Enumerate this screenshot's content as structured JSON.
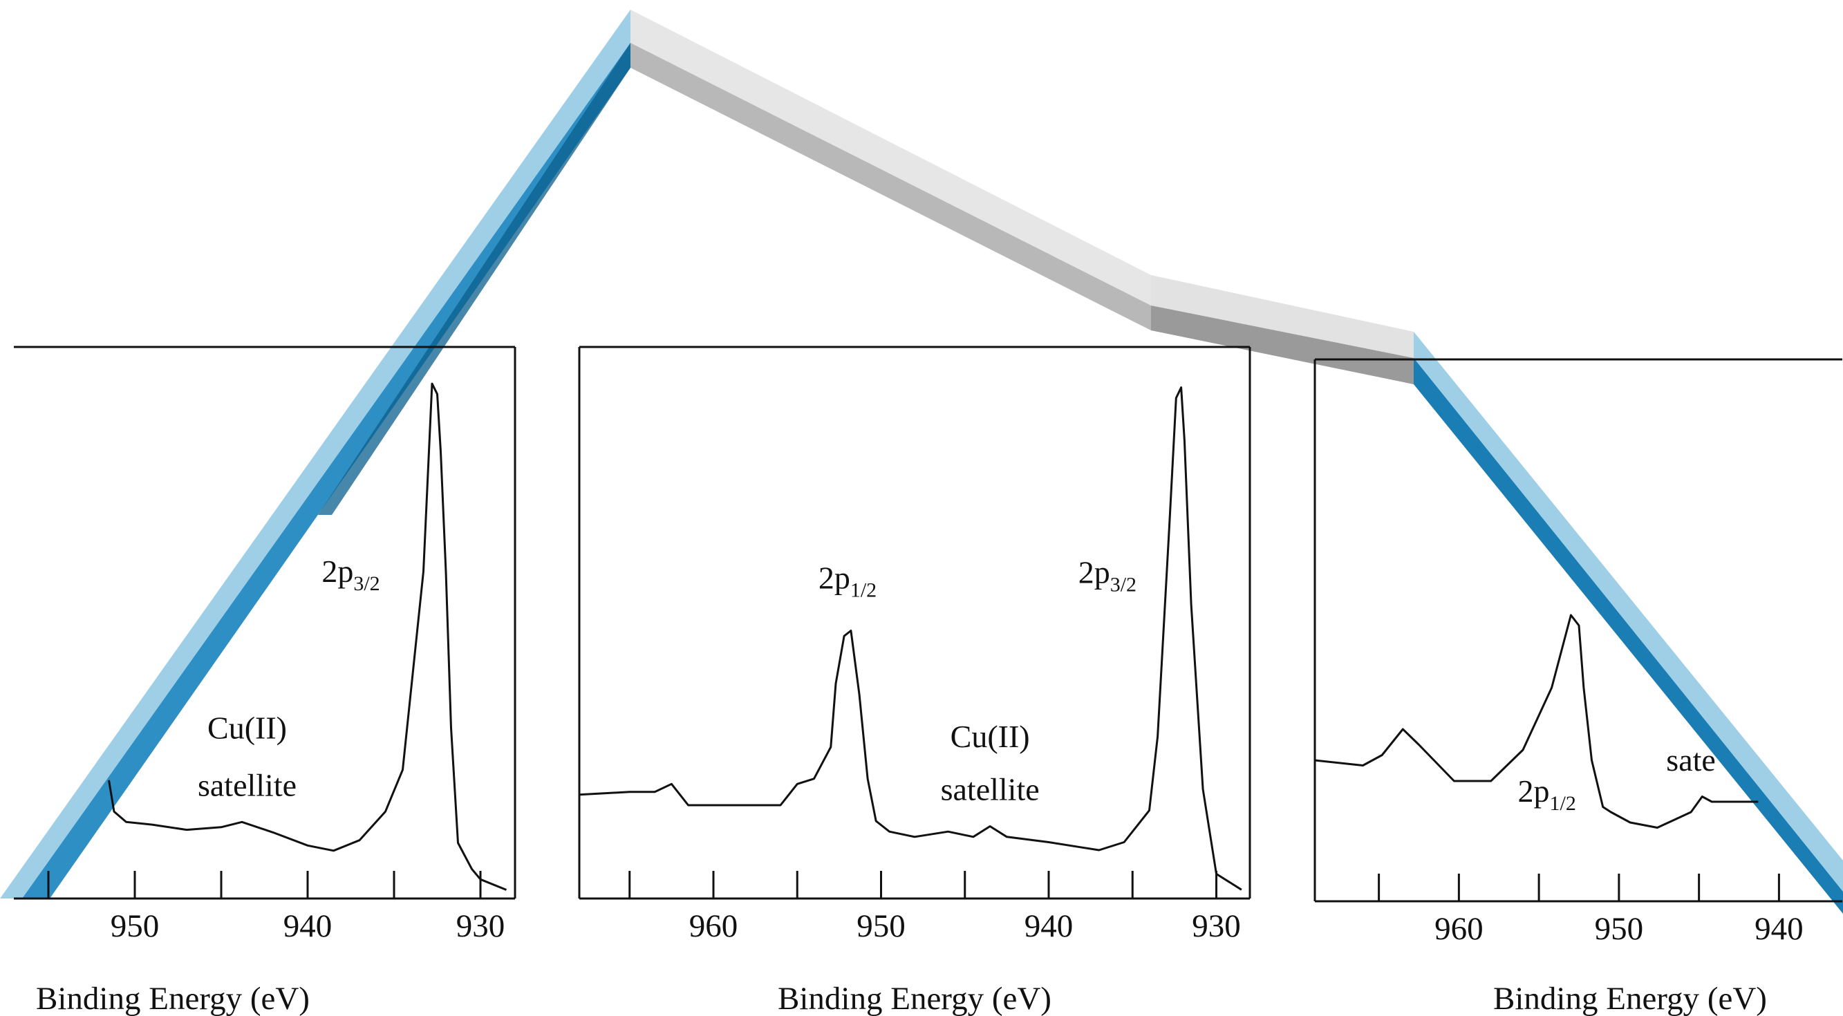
{
  "chart_data": [
    {
      "type": "line",
      "title": "",
      "xlabel": "Binding Energy (eV)",
      "ylabel": "",
      "x_reversed": true,
      "xlim": [
        957,
        928
      ],
      "xticks": [
        950,
        940,
        930
      ],
      "ylim": [
        0,
        1
      ],
      "series": [
        {
          "x": [
            951.5,
            951.2,
            950.5,
            949,
            947,
            945,
            943.8,
            942,
            940,
            938.5,
            937,
            935.5,
            934.5,
            933.3,
            932.8,
            932.5,
            932.3,
            932.0,
            931.7,
            931.3,
            930.5,
            930,
            928.5
          ],
          "values": [
            0.22,
            0.16,
            0.14,
            0.135,
            0.125,
            0.13,
            0.14,
            0.12,
            0.095,
            0.085,
            0.105,
            0.16,
            0.24,
            0.62,
            0.98,
            0.96,
            0.85,
            0.62,
            0.32,
            0.1,
            0.05,
            0.03,
            0.01
          ]
        }
      ],
      "annotations": [
        {
          "text": "2p",
          "sub": "3/2",
          "x": 937.5,
          "y": 0.6
        },
        {
          "text": "Cu(II)",
          "x": 943.5,
          "y": 0.3
        },
        {
          "text": "satellite",
          "x": 943.5,
          "y": 0.19
        }
      ]
    },
    {
      "type": "line",
      "title": "",
      "xlabel": "Binding Energy (eV)",
      "ylabel": "",
      "x_reversed": true,
      "xlim": [
        968,
        928
      ],
      "xticks": [
        960,
        950,
        940,
        930
      ],
      "ylim": [
        0,
        1
      ],
      "series": [
        {
          "x": [
            968,
            965,
            963.5,
            962.5,
            961.5,
            958.5,
            956,
            955,
            954,
            953,
            952.7,
            952.2,
            951.8,
            951.3,
            950.8,
            950.3,
            949.5,
            948,
            946,
            944.5,
            943.5,
            942.5,
            940,
            938,
            937,
            935.5,
            934,
            933.5,
            932.8,
            932.4,
            932.1,
            931.9,
            931.5,
            930.8,
            930,
            928.5
          ],
          "values": [
            0.19,
            0.195,
            0.195,
            0.21,
            0.17,
            0.17,
            0.17,
            0.21,
            0.22,
            0.28,
            0.4,
            0.49,
            0.5,
            0.38,
            0.22,
            0.14,
            0.12,
            0.11,
            0.12,
            0.11,
            0.13,
            0.11,
            0.1,
            0.09,
            0.085,
            0.1,
            0.16,
            0.3,
            0.7,
            0.94,
            0.96,
            0.86,
            0.55,
            0.2,
            0.04,
            0.01
          ]
        }
      ],
      "annotations": [
        {
          "text": "2p",
          "sub": "1/2",
          "x": 952.0,
          "y": 0.58
        },
        {
          "text": "2p",
          "sub": "3/2",
          "x": 936.5,
          "y": 0.59
        },
        {
          "text": "Cu(II)",
          "x": 943.5,
          "y": 0.28
        },
        {
          "text": "satellite",
          "x": 943.5,
          "y": 0.18
        }
      ]
    },
    {
      "type": "line",
      "title": "",
      "xlabel": "Binding Energy (eV)",
      "ylabel": "",
      "x_reversed": true,
      "xlim": [
        969,
        936
      ],
      "xticks": [
        960,
        950,
        940
      ],
      "ylim": [
        0,
        1
      ],
      "series": [
        {
          "x": [
            969,
            966,
            964.8,
            963.5,
            962.5,
            960.3,
            958,
            956,
            954.2,
            953.0,
            952.5,
            952.2,
            951.7,
            951.0,
            950.5,
            949.3,
            947.6,
            946.2,
            945.5,
            944.8,
            944.2,
            943.5,
            941.3
          ],
          "values": [
            0.26,
            0.25,
            0.27,
            0.32,
            0.29,
            0.22,
            0.22,
            0.28,
            0.4,
            0.54,
            0.52,
            0.4,
            0.26,
            0.17,
            0.16,
            0.14,
            0.13,
            0.15,
            0.16,
            0.19,
            0.18,
            0.18,
            0.18
          ]
        }
      ],
      "annotations": [
        {
          "text": "2p",
          "sub": "1/2",
          "x": 954.5,
          "y": 0.18
        },
        {
          "text": "sate",
          "x": 945.5,
          "y": 0.24
        }
      ]
    }
  ],
  "ribbon_colors": {
    "blue_light": "#9ecfe6",
    "blue_mid": "#2e8fc4",
    "blue_dark": "#0a5f8c",
    "gray_light": "#e6e6e6",
    "gray_mid": "#b8b8b8",
    "gray_dark": "#8c8c8c",
    "line": "#111111"
  }
}
